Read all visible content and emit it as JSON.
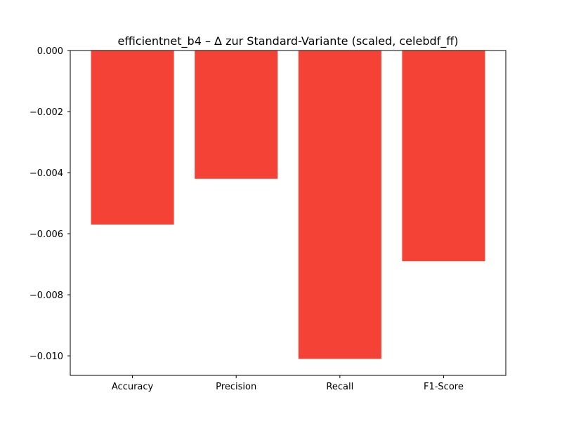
{
  "chart_data": {
    "type": "bar",
    "title": "efficientnet_b4 – Δ zur Standard-Variante (scaled, celebdf_ff)",
    "xlabel": "",
    "ylabel": "",
    "categories": [
      "Accuracy",
      "Precision",
      "Recall",
      "F1-Score"
    ],
    "values": [
      -0.0057,
      -0.0042,
      -0.0101,
      -0.0069
    ],
    "ylim": [
      -0.01064,
      0.0
    ],
    "yticks": [
      0.0,
      -0.002,
      -0.004,
      -0.006,
      -0.008,
      -0.01
    ],
    "ytick_labels": [
      "0.000",
      "−0.002",
      "−0.004",
      "−0.006",
      "−0.008",
      "−0.010"
    ],
    "bar_color": "#f44336",
    "grid": false,
    "legend": "none"
  }
}
